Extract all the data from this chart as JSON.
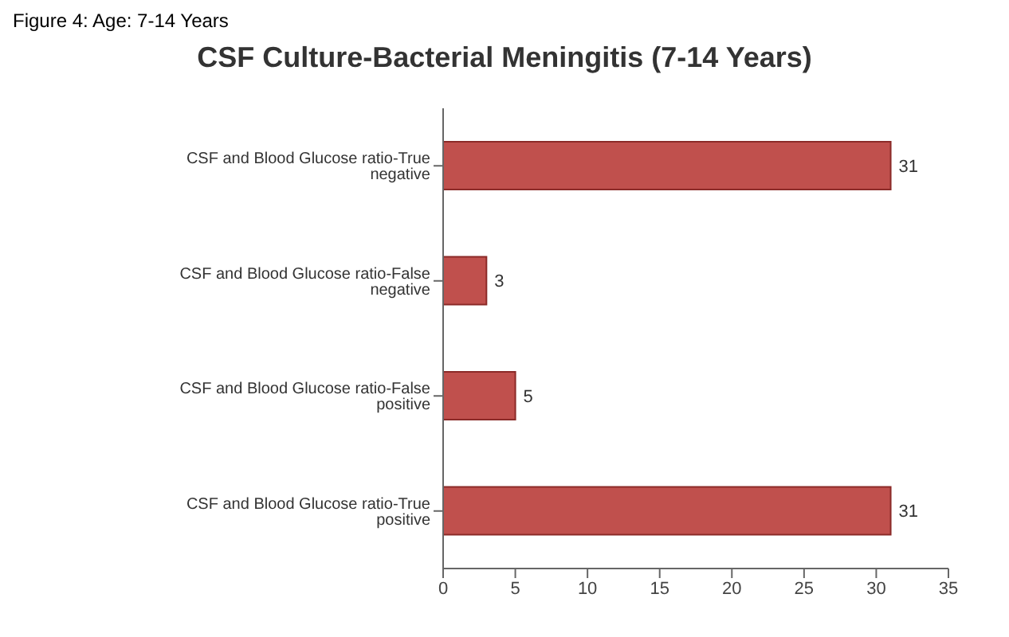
{
  "chart_data": {
    "type": "bar",
    "orientation": "horizontal",
    "title": "CSF Culture-Bacterial Meningitis (7-14 Years)",
    "annotations": [
      "Figure 4: Age: 7-14 Years"
    ],
    "categories": [
      "CSF and Blood Glucose ratio-True negative",
      "CSF and Blood Glucose ratio-False negative",
      "CSF and Blood Glucose ratio-False positive",
      "CSF and Blood Glucose ratio-True positive"
    ],
    "values": [
      31,
      3,
      5,
      31
    ],
    "color": "#c0504d",
    "xlim": [
      0,
      35
    ],
    "xticks": [
      0,
      5,
      10,
      15,
      20,
      25,
      30,
      35
    ],
    "data_labels": true
  }
}
